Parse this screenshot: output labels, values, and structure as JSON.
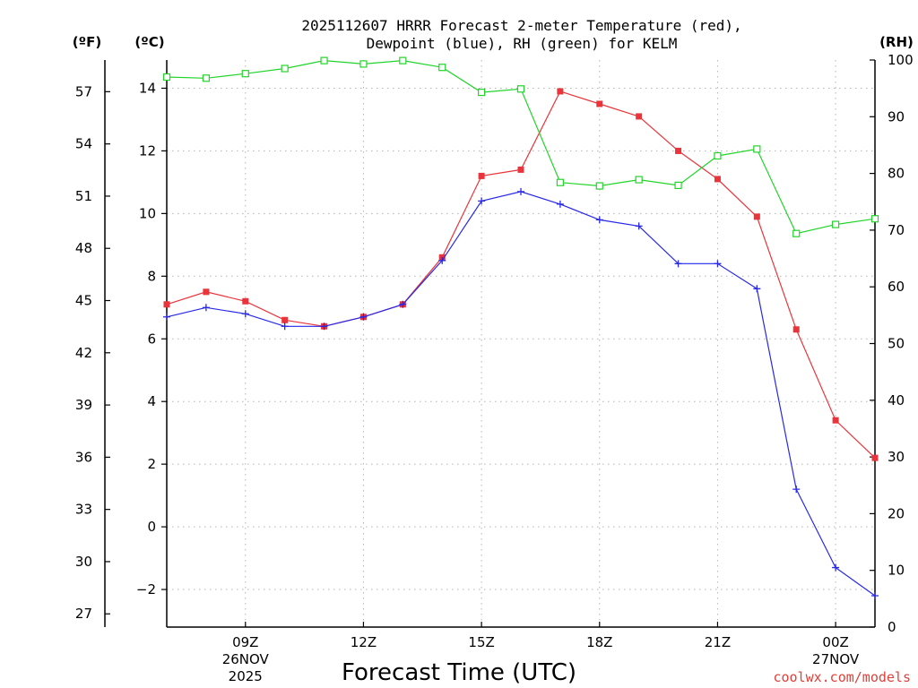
{
  "chart_data": {
    "type": "line",
    "title_line1": "2025112607 HRRR Forecast 2-meter Temperature (red),",
    "title_line2": "Dewpoint (blue), RH (green) for KELM",
    "xlabel": "Forecast Time (UTC)",
    "credit": "coolwx.com/models",
    "units": {
      "fahrenheit": "(ºF)",
      "celsius": "(ºC)",
      "rh": "(RH)"
    },
    "x_range_hours_utc": [
      7,
      25
    ],
    "x_ticks": [
      {
        "hour": 9,
        "label": "09Z",
        "date": "26NOV",
        "year": "2025"
      },
      {
        "hour": 12,
        "label": "12Z"
      },
      {
        "hour": 15,
        "label": "15Z"
      },
      {
        "hour": 18,
        "label": "18Z"
      },
      {
        "hour": 21,
        "label": "21Z"
      },
      {
        "hour": 24,
        "label": "00Z",
        "date": "27NOV"
      }
    ],
    "y_celsius": {
      "range": [
        -3.2,
        14.9
      ],
      "ticks": [
        -2,
        0,
        2,
        4,
        6,
        8,
        10,
        12,
        14
      ]
    },
    "y_fahrenheit": {
      "ticks": [
        27,
        30,
        33,
        36,
        39,
        42,
        45,
        48,
        51,
        54,
        57
      ]
    },
    "y_rh": {
      "range": [
        0,
        100
      ],
      "ticks": [
        0,
        10,
        20,
        30,
        40,
        50,
        60,
        70,
        80,
        90,
        100
      ]
    },
    "x_hours": [
      7,
      8,
      9,
      10,
      11,
      12,
      13,
      14,
      15,
      16,
      17,
      18,
      19,
      20,
      21,
      22,
      23,
      24,
      25
    ],
    "series": [
      {
        "name": "Temperature",
        "unit": "C",
        "color": "#e8343a",
        "marker": "filled-square",
        "values": [
          7.1,
          7.5,
          7.2,
          6.6,
          6.4,
          6.7,
          7.1,
          8.6,
          11.2,
          11.4,
          13.9,
          13.5,
          13.1,
          12.0,
          11.1,
          9.9,
          6.3,
          3.4,
          2.2
        ]
      },
      {
        "name": "Dewpoint",
        "unit": "C",
        "color": "#2828e8",
        "marker": "plus",
        "values": [
          6.7,
          7.0,
          6.8,
          6.4,
          6.4,
          6.7,
          7.1,
          8.5,
          10.4,
          10.7,
          10.3,
          9.8,
          9.6,
          8.4,
          8.4,
          7.6,
          1.2,
          -1.3,
          -2.2
        ]
      },
      {
        "name": "RH",
        "unit": "%",
        "color": "#22d42a",
        "marker": "open-square",
        "values": [
          97,
          96.8,
          97.6,
          98.5,
          99.9,
          99.3,
          99.9,
          98.7,
          94.3,
          94.9,
          78.4,
          77.8,
          78.9,
          77.9,
          83.1,
          84.3,
          69.4,
          71.0,
          72.0
        ]
      }
    ]
  }
}
